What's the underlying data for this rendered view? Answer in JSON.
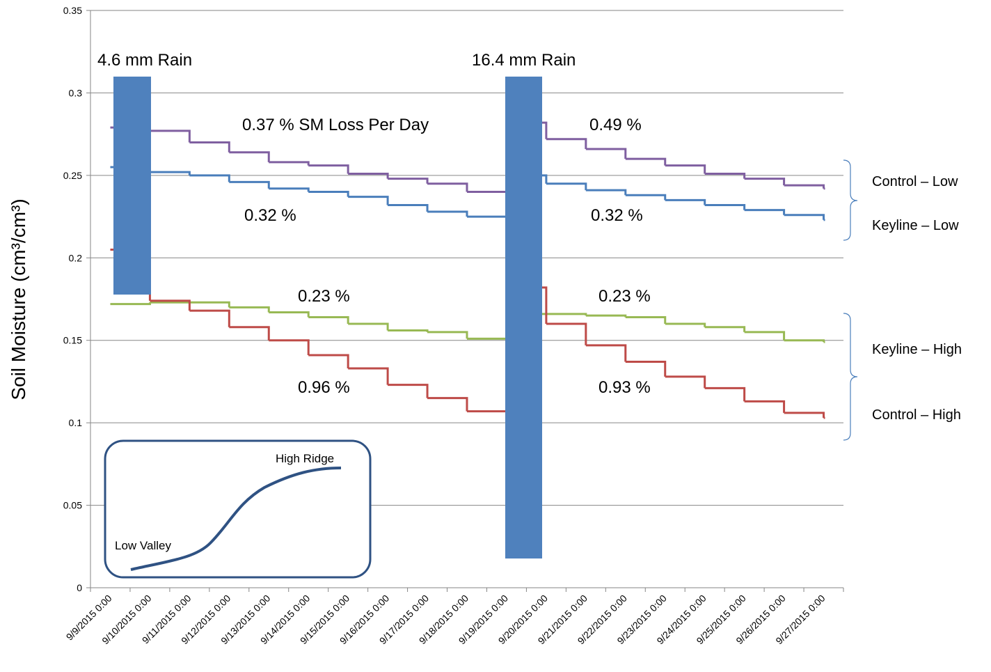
{
  "chart_data": {
    "type": "step-line",
    "y_label": "Soil Moisture (cm³/cm³)",
    "categories": [
      "9/9/2015 0:00",
      "9/10/2015 0:00",
      "9/11/2015 0:00",
      "9/12/2015 0:00",
      "9/13/2015 0:00",
      "9/14/2015 0:00",
      "9/15/2015 0:00",
      "9/16/2015 0:00",
      "9/17/2015 0:00",
      "9/18/2015 0:00",
      "9/19/2015 0:00",
      "9/20/2015 0:00",
      "9/21/2015 0:00",
      "9/22/2015 0:00",
      "9/23/2015 0:00",
      "9/24/2015 0:00",
      "9/25/2015 0:00",
      "9/26/2015 0:00",
      "9/27/2015 0:00"
    ],
    "series": [
      {
        "name": "Control – Low",
        "color": "#7f5fa0",
        "values": [
          0.279,
          0.277,
          0.27,
          0.264,
          0.258,
          0.256,
          0.251,
          0.248,
          0.245,
          0.24,
          0.282,
          0.272,
          0.266,
          0.26,
          0.256,
          0.251,
          0.248,
          0.244,
          0.242
        ]
      },
      {
        "name": "Keyline – Low",
        "color": "#4a7ebb",
        "values": [
          0.255,
          0.252,
          0.25,
          0.246,
          0.242,
          0.24,
          0.237,
          0.232,
          0.228,
          0.225,
          0.25,
          0.245,
          0.241,
          0.238,
          0.235,
          0.232,
          0.229,
          0.226,
          0.223
        ]
      },
      {
        "name": "Keyline – High",
        "color": "#98b954",
        "values": [
          0.172,
          0.173,
          0.173,
          0.17,
          0.167,
          0.164,
          0.16,
          0.156,
          0.155,
          0.151,
          0.166,
          0.166,
          0.165,
          0.164,
          0.16,
          0.158,
          0.155,
          0.15,
          0.149
        ]
      },
      {
        "name": "Control – High",
        "color": "#be4b48",
        "values": [
          0.205,
          0.174,
          0.168,
          0.158,
          0.15,
          0.141,
          0.133,
          0.123,
          0.115,
          0.107,
          0.182,
          0.16,
          0.147,
          0.137,
          0.128,
          0.121,
          0.113,
          0.106,
          0.103
        ]
      }
    ],
    "ylim": [
      0,
      0.35
    ],
    "yticks": [
      0,
      0.05,
      0.1,
      0.15,
      0.2,
      0.25,
      0.3,
      0.35
    ],
    "grid": true,
    "annotations": [
      "4.6 mm Rain",
      "16.4 mm Rain",
      "0.37 % SM Loss Per Day",
      "0.49 %",
      "0.32 %",
      "0.32 %",
      "0.23 %",
      "0.23 %",
      "0.96 %",
      "0.93 %",
      "High Ridge",
      "Low Valley"
    ]
  }
}
